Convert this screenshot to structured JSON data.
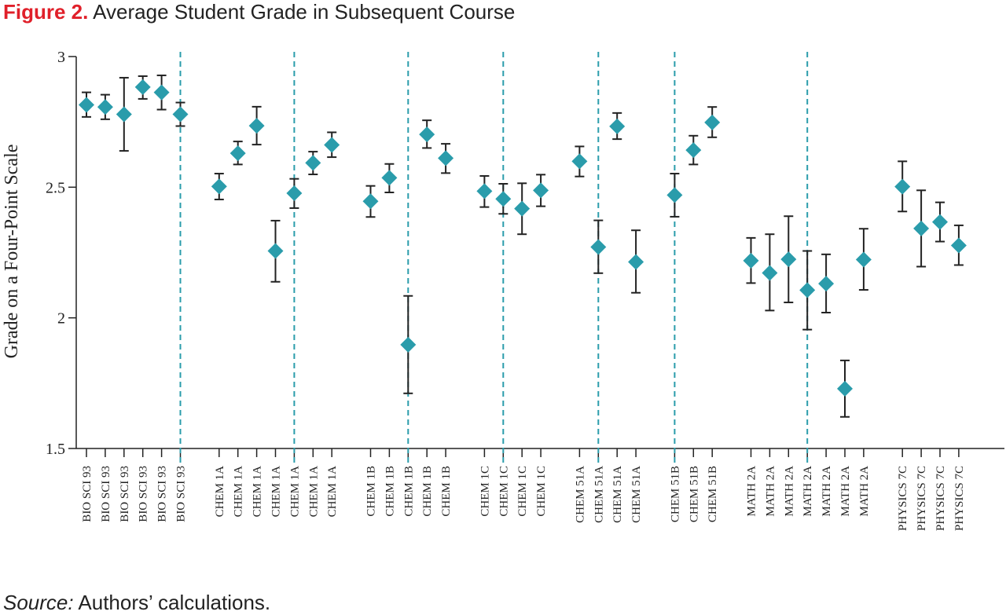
{
  "title": {
    "figure_label": "Figure 2.",
    "text": "Average Student Grade in Subsequent Course"
  },
  "source": {
    "label": "Source:",
    "text": "Authors’ calculations."
  },
  "colors": {
    "marker": "#2a9cab",
    "divider": "#2a9cab",
    "errorbar": "#222222",
    "title_accent": "#e0202a"
  },
  "chart_data": {
    "type": "scatter",
    "ylabel": "Grade on a Four-Point Scale",
    "ylim": [
      1.5,
      3.0
    ],
    "yticks": [
      "1.5",
      "2",
      "2.5",
      "3"
    ],
    "ytick_values": [
      1.5,
      2.0,
      2.5,
      3.0
    ],
    "grid": false,
    "marker": "diamond",
    "error_bars": true,
    "x": [
      "BIO SCI 93",
      "BIO SCI 93",
      "BIO SCI 93",
      "BIO SCI 93",
      "BIO SCI 93",
      "BIO SCI 93",
      "CHEM 1A",
      "CHEM 1A",
      "CHEM 1A",
      "CHEM 1A",
      "CHEM 1A",
      "CHEM 1A",
      "CHEM 1A",
      "CHEM 1B",
      "CHEM 1B",
      "CHEM 1B",
      "CHEM 1B",
      "CHEM 1B",
      "CHEM 1C",
      "CHEM 1C",
      "CHEM 1C",
      "CHEM 1C",
      "CHEM 51A",
      "CHEM 51A",
      "CHEM 51A",
      "CHEM 51A",
      "CHEM 51B",
      "CHEM 51B",
      "CHEM 51B",
      "MATH 2A",
      "MATH 2A",
      "MATH 2A",
      "MATH 2A",
      "MATH 2A",
      "MATH 2A",
      "MATH 2A",
      "PHYSICS 7C",
      "PHYSICS 7C",
      "PHYSICS 7C",
      "PHYSICS 7C"
    ],
    "y": [
      2.815,
      2.807,
      2.779,
      2.883,
      2.863,
      2.779,
      2.503,
      2.63,
      2.735,
      2.256,
      2.477,
      2.593,
      2.662,
      2.446,
      2.536,
      1.897,
      2.702,
      2.611,
      2.485,
      2.455,
      2.418,
      2.488,
      2.599,
      2.271,
      2.733,
      2.214,
      2.47,
      2.642,
      2.748,
      2.219,
      2.172,
      2.224,
      2.106,
      2.131,
      1.729,
      2.223,
      2.502,
      2.342,
      2.367,
      2.277
    ],
    "y_low": [
      2.769,
      2.76,
      2.639,
      2.838,
      2.797,
      2.734,
      2.453,
      2.587,
      2.663,
      2.138,
      2.42,
      2.549,
      2.615,
      2.386,
      2.48,
      1.711,
      2.65,
      2.554,
      2.424,
      2.398,
      2.32,
      2.427,
      2.541,
      2.171,
      2.684,
      2.096,
      2.387,
      2.587,
      2.691,
      2.133,
      2.028,
      2.059,
      1.955,
      2.02,
      1.621,
      2.107,
      2.407,
      2.196,
      2.292,
      2.202
    ],
    "y_high": [
      2.863,
      2.854,
      2.919,
      2.925,
      2.928,
      2.824,
      2.552,
      2.675,
      2.808,
      2.372,
      2.532,
      2.636,
      2.71,
      2.505,
      2.589,
      2.084,
      2.756,
      2.666,
      2.543,
      2.513,
      2.515,
      2.548,
      2.656,
      2.373,
      2.784,
      2.335,
      2.552,
      2.697,
      2.807,
      2.306,
      2.32,
      2.389,
      2.256,
      2.243,
      1.837,
      2.341,
      2.599,
      2.488,
      2.442,
      2.354
    ],
    "dividers_after_index": [
      5,
      10,
      15,
      19,
      23,
      26,
      32
    ]
  }
}
